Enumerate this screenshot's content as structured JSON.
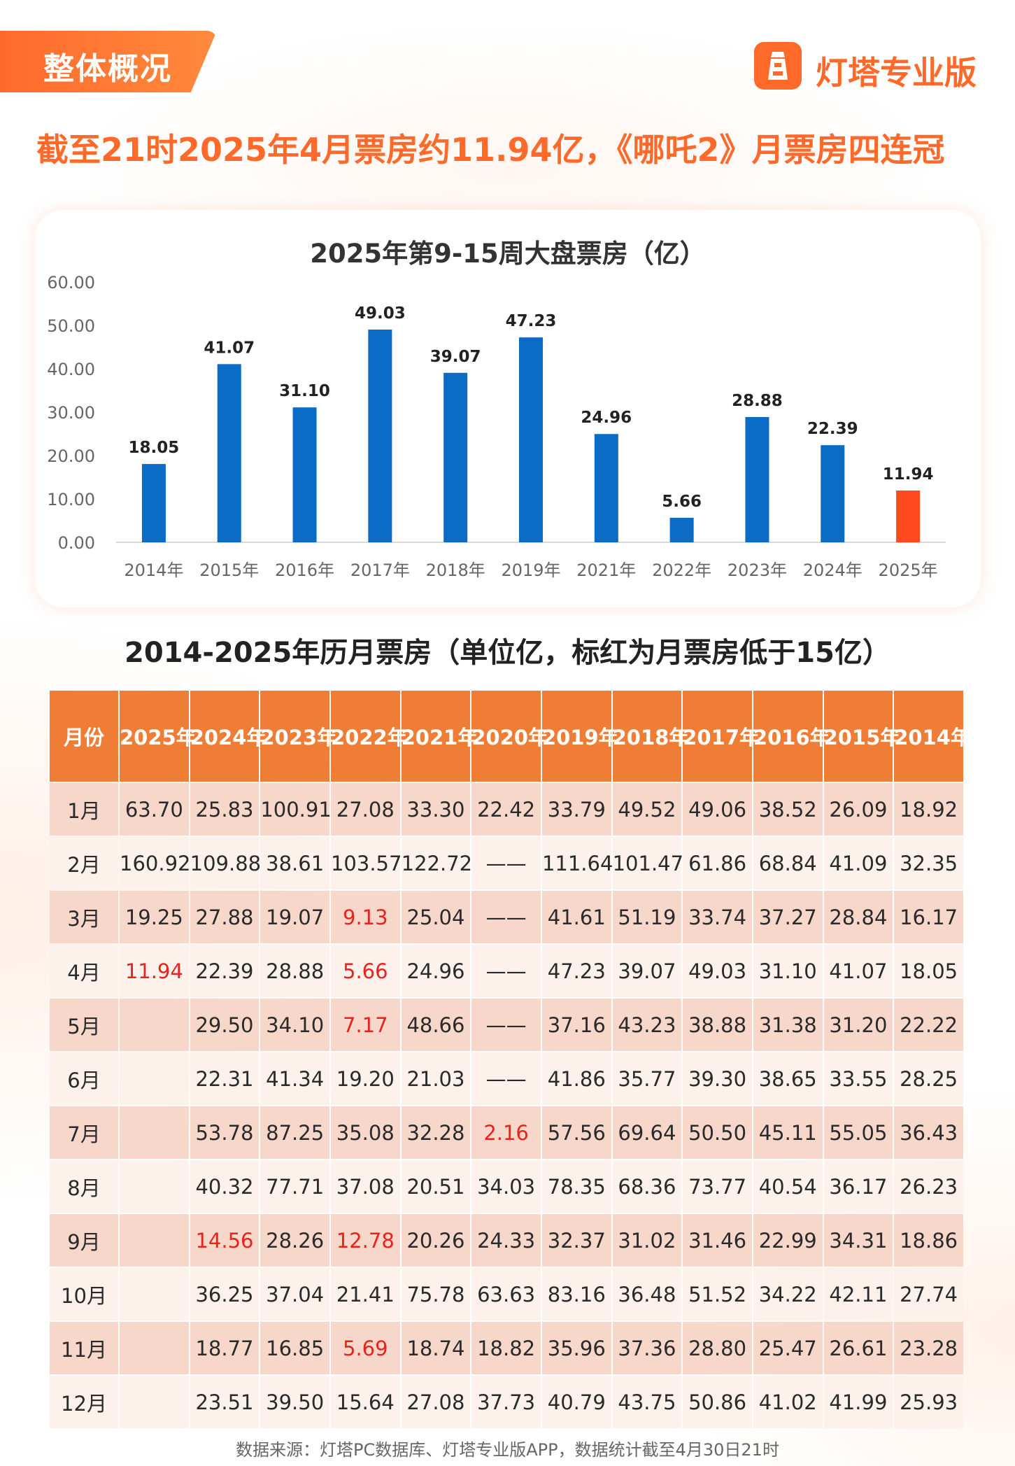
{
  "header": {
    "section_label": "整体概况",
    "brand_name": "灯塔专业版"
  },
  "headline": "截至21时2025年4月票房约11.94亿，《哪吒2》月票房四连冠",
  "colors": {
    "accent": "#ff6a2b",
    "bar_blue": "#0a6cc4",
    "bar_highlight": "#fe4a1c",
    "table_header": "#f07d35",
    "row_odd": "#f8d7cb",
    "row_even": "#fdf1ec",
    "low_value_red": "#e8231c"
  },
  "chart_data": {
    "type": "bar",
    "title": "2025年第9-15周大盘票房（亿）",
    "categories": [
      "2014年",
      "2015年",
      "2016年",
      "2017年",
      "2018年",
      "2019年",
      "2021年",
      "2022年",
      "2023年",
      "2024年",
      "2025年"
    ],
    "values": [
      18.05,
      41.07,
      31.1,
      49.03,
      39.07,
      47.23,
      24.96,
      5.66,
      28.88,
      22.39,
      11.94
    ],
    "value_labels": [
      "18.05",
      "41.07",
      "31.10",
      "49.03",
      "39.07",
      "47.23",
      "24.96",
      "5.66",
      "28.88",
      "22.39",
      "11.94"
    ],
    "highlight_index": 10,
    "ylim": [
      0,
      60
    ],
    "yticks": [
      "0.00",
      "10.00",
      "20.00",
      "30.00",
      "40.00",
      "50.00",
      "60.00"
    ],
    "grid": false,
    "legend": "none"
  },
  "table": {
    "title": "2014-2025年历月票房（单位亿，标红为月票房低于15亿）",
    "columns": [
      "月份",
      "2025年",
      "2024年",
      "2023年",
      "2022年",
      "2021年",
      "2020年",
      "2019年",
      "2018年",
      "2017年",
      "2016年",
      "2015年",
      "2014年"
    ],
    "rows": [
      [
        "1月",
        "63.70",
        "25.83",
        "100.91",
        "27.08",
        "33.30",
        "22.42",
        "33.79",
        "49.52",
        "49.06",
        "38.52",
        "26.09",
        "18.92"
      ],
      [
        "2月",
        "160.92",
        "109.88",
        "38.61",
        "103.57",
        "122.72",
        "——",
        "111.64",
        "101.47",
        "61.86",
        "68.84",
        "41.09",
        "32.35"
      ],
      [
        "3月",
        "19.25",
        "27.88",
        "19.07",
        "9.13",
        "25.04",
        "——",
        "41.61",
        "51.19",
        "33.74",
        "37.27",
        "28.84",
        "16.17"
      ],
      [
        "4月",
        "11.94",
        "22.39",
        "28.88",
        "5.66",
        "24.96",
        "——",
        "47.23",
        "39.07",
        "49.03",
        "31.10",
        "41.07",
        "18.05"
      ],
      [
        "5月",
        "",
        "29.50",
        "34.10",
        "7.17",
        "48.66",
        "——",
        "37.16",
        "43.23",
        "38.88",
        "31.38",
        "31.20",
        "22.22"
      ],
      [
        "6月",
        "",
        "22.31",
        "41.34",
        "19.20",
        "21.03",
        "——",
        "41.86",
        "35.77",
        "39.30",
        "38.65",
        "33.55",
        "28.25"
      ],
      [
        "7月",
        "",
        "53.78",
        "87.25",
        "35.08",
        "32.28",
        "2.16",
        "57.56",
        "69.64",
        "50.50",
        "45.11",
        "55.05",
        "36.43"
      ],
      [
        "8月",
        "",
        "40.32",
        "77.71",
        "37.08",
        "20.51",
        "34.03",
        "78.35",
        "68.36",
        "73.77",
        "40.54",
        "36.17",
        "26.23"
      ],
      [
        "9月",
        "",
        "14.56",
        "28.26",
        "12.78",
        "20.26",
        "24.33",
        "32.37",
        "31.02",
        "31.46",
        "22.99",
        "34.31",
        "18.86"
      ],
      [
        "10月",
        "",
        "36.25",
        "37.04",
        "21.41",
        "75.78",
        "63.63",
        "83.16",
        "36.48",
        "51.52",
        "34.22",
        "42.11",
        "27.74"
      ],
      [
        "11月",
        "",
        "18.77",
        "16.85",
        "5.69",
        "18.74",
        "18.82",
        "35.96",
        "37.36",
        "28.80",
        "25.47",
        "26.61",
        "23.28"
      ],
      [
        "12月",
        "",
        "23.51",
        "39.50",
        "15.64",
        "27.08",
        "37.73",
        "40.79",
        "43.75",
        "50.86",
        "41.02",
        "41.99",
        "25.93"
      ]
    ],
    "red_threshold": 15
  },
  "footer": {
    "source": "数据来源：灯塔PC数据库、灯塔专业版APP，数据统计截至4月30日21时"
  }
}
